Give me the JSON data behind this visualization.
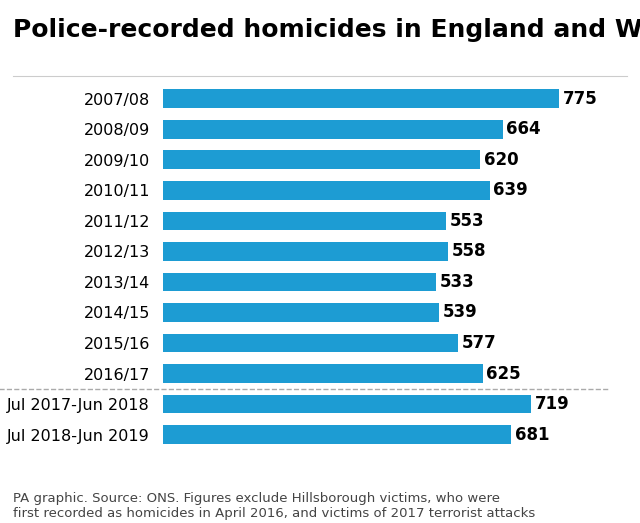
{
  "title": "Police-recorded homicides in England and Wales",
  "categories": [
    "2007/08",
    "2008/09",
    "2009/10",
    "2010/11",
    "2011/12",
    "2012/13",
    "2013/14",
    "2014/15",
    "2015/16",
    "2016/17",
    "Jul 2017-Jun 2018",
    "Jul 2018-Jun 2019"
  ],
  "values": [
    775,
    664,
    620,
    639,
    553,
    558,
    533,
    539,
    577,
    625,
    719,
    681
  ],
  "bar_color": "#1d9cd3",
  "label_color": "#000000",
  "background_color": "#ffffff",
  "title_fontsize": 18,
  "label_fontsize": 11.5,
  "value_fontsize": 12,
  "footer_text": "PA graphic. Source: ONS. Figures exclude Hillsborough victims, who were\nfirst recorded as homicides in April 2016, and victims of 2017 terrorist attacks",
  "footer_fontsize": 9.5,
  "xlim": [
    0,
    870
  ]
}
